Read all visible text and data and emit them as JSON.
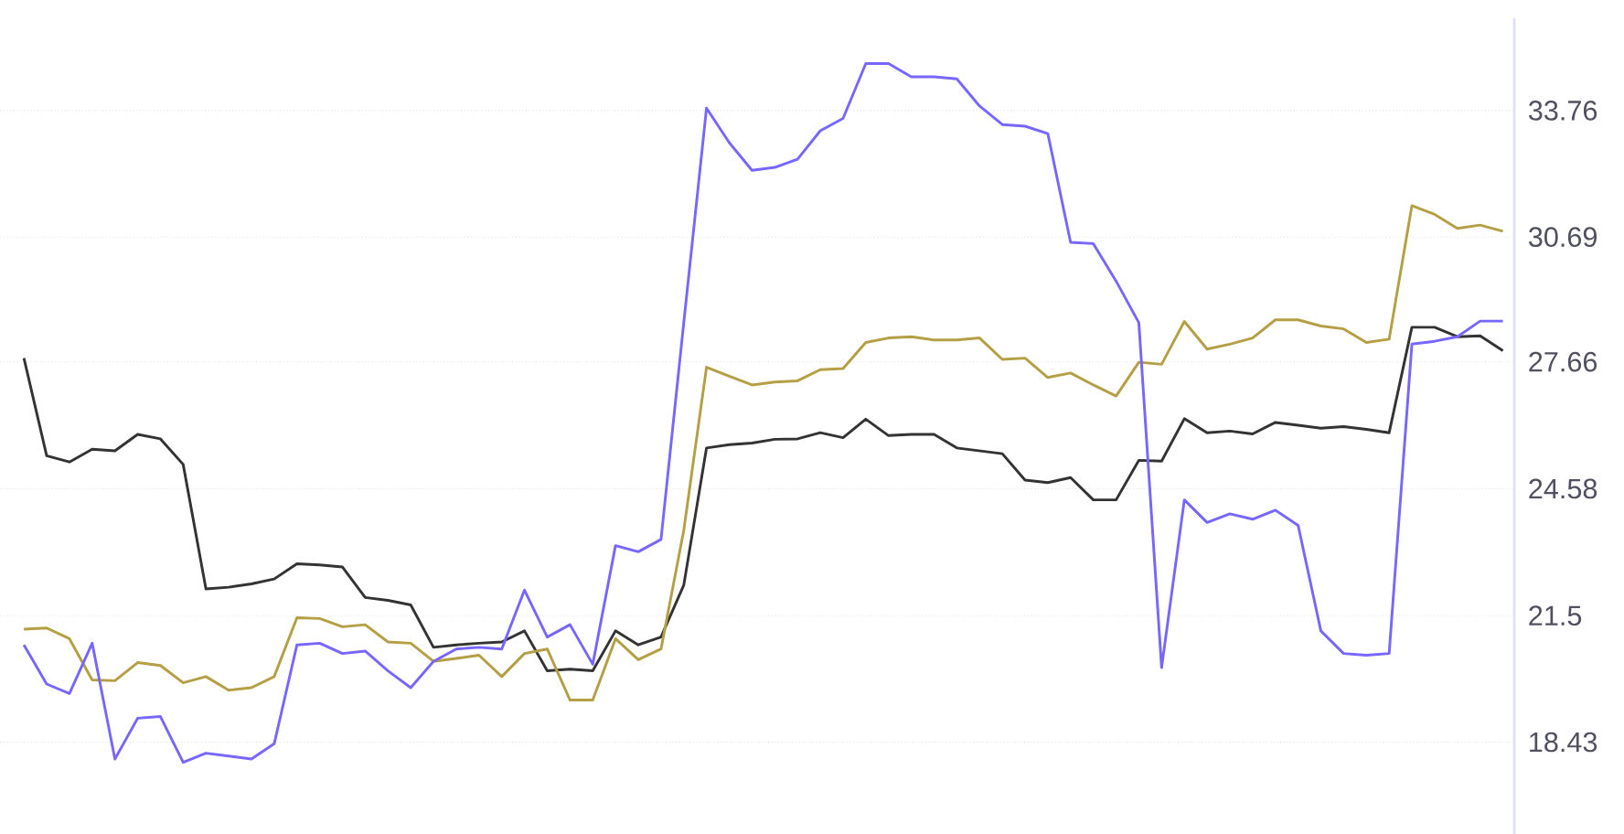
{
  "chart_data": {
    "type": "line",
    "categories": [
      null,
      null,
      null,
      null,
      null,
      null,
      null,
      null,
      null,
      null,
      null,
      null,
      null,
      null,
      null,
      null,
      null,
      null,
      null,
      null,
      null,
      null,
      null,
      null,
      null,
      null,
      null,
      null,
      null,
      null,
      null,
      null,
      null,
      null,
      null,
      null,
      null,
      null,
      null,
      null,
      null,
      null,
      null,
      null,
      null,
      null,
      null,
      null,
      null,
      null,
      null,
      null,
      null,
      null,
      null,
      null,
      null,
      null,
      null,
      null,
      null,
      null,
      null,
      null,
      null,
      null
    ],
    "series": [
      {
        "color": "#333333",
        "values": [
          27.75,
          25.38,
          25.23,
          25.54,
          25.5,
          25.9,
          25.79,
          25.17,
          22.15,
          22.19,
          22.27,
          22.39,
          22.76,
          22.73,
          22.68,
          21.94,
          21.87,
          21.76,
          20.73,
          20.79,
          20.83,
          20.86,
          21.13,
          20.16,
          20.2,
          20.16,
          21.13,
          20.79,
          20.98,
          22.24,
          25.57,
          25.65,
          25.69,
          25.78,
          25.79,
          25.94,
          25.82,
          26.27,
          25.87,
          25.9,
          25.9,
          25.57,
          25.5,
          25.43,
          24.79,
          24.73,
          24.85,
          24.31,
          24.31,
          25.27,
          25.25,
          26.28,
          25.94,
          25.98,
          25.91,
          26.19,
          26.12,
          26.05,
          26.09,
          26.02,
          25.94,
          28.5,
          28.5,
          28.27,
          28.29,
          27.93
        ]
      },
      {
        "color": "#b59f45",
        "values": [
          21.17,
          21.2,
          20.94,
          19.94,
          19.92,
          20.36,
          20.29,
          19.87,
          20.02,
          19.69,
          19.75,
          20.02,
          21.45,
          21.43,
          21.23,
          21.28,
          20.86,
          20.83,
          20.39,
          20.46,
          20.54,
          20.02,
          20.58,
          20.69,
          19.45,
          19.45,
          20.94,
          20.43,
          20.69,
          23.57,
          27.53,
          27.31,
          27.1,
          27.17,
          27.2,
          27.47,
          27.5,
          28.13,
          28.24,
          28.27,
          28.19,
          28.19,
          28.24,
          27.72,
          27.75,
          27.28,
          27.39,
          27.1,
          26.83,
          27.65,
          27.6,
          28.64,
          27.97,
          28.09,
          28.24,
          28.68,
          28.68,
          28.53,
          28.46,
          28.13,
          28.21,
          31.45,
          31.24,
          30.9,
          30.98,
          30.83
        ]
      },
      {
        "color": "#7766ff",
        "values": [
          20.79,
          19.84,
          19.61,
          20.83,
          18.02,
          19.01,
          19.05,
          17.94,
          18.16,
          18.09,
          18.02,
          18.39,
          20.79,
          20.83,
          20.58,
          20.64,
          20.16,
          19.75,
          20.39,
          20.69,
          20.73,
          20.69,
          22.12,
          20.98,
          21.28,
          20.32,
          23.2,
          23.05,
          23.35,
          28.61,
          33.82,
          32.98,
          32.31,
          32.38,
          32.58,
          33.27,
          33.57,
          34.9,
          34.9,
          34.58,
          34.58,
          34.53,
          33.87,
          33.42,
          33.38,
          33.2,
          30.56,
          30.53,
          29.62,
          28.61,
          20.24,
          24.31,
          23.76,
          23.97,
          23.84,
          24.06,
          23.69,
          21.13,
          20.58,
          20.54,
          20.58,
          28.09,
          28.16,
          28.27,
          28.65,
          28.65
        ]
      }
    ],
    "ylim": [
      16.2,
      36.0
    ],
    "yticks": [
      18.43,
      21.5,
      24.58,
      27.66,
      30.69,
      33.76
    ],
    "grid": "y",
    "legend": false,
    "marker": "none",
    "line_style": "solid"
  }
}
